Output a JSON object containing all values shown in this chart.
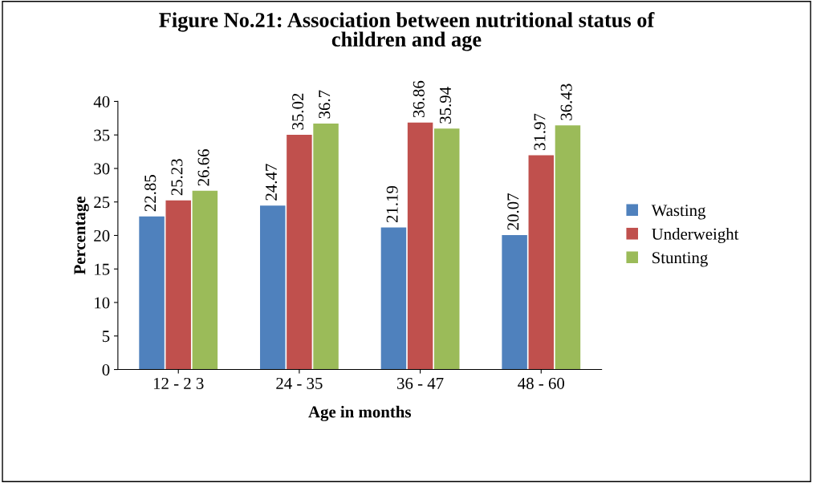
{
  "chart_data": {
    "type": "bar",
    "title": "Figure No.21: Association between nutritional status of\nchildren and age",
    "xlabel": "Age in months",
    "ylabel": "Percentage",
    "categories": [
      "12 - 2 3",
      "24 - 35",
      "36 - 47",
      "48 - 60"
    ],
    "series": [
      {
        "name": "Wasting",
        "color": "#4f81bd",
        "values": [
          22.85,
          24.47,
          21.19,
          20.07
        ]
      },
      {
        "name": "Underweight",
        "color": "#c0504d",
        "values": [
          25.23,
          35.02,
          36.86,
          31.97
        ]
      },
      {
        "name": "Stunting",
        "color": "#9bbb59",
        "values": [
          26.66,
          36.7,
          35.94,
          36.43
        ]
      }
    ],
    "ylim": [
      0,
      40
    ],
    "yticks": [
      0,
      5,
      10,
      15,
      20,
      25,
      30,
      35,
      40
    ],
    "grid": false,
    "legend": "right",
    "data_labels": true
  }
}
